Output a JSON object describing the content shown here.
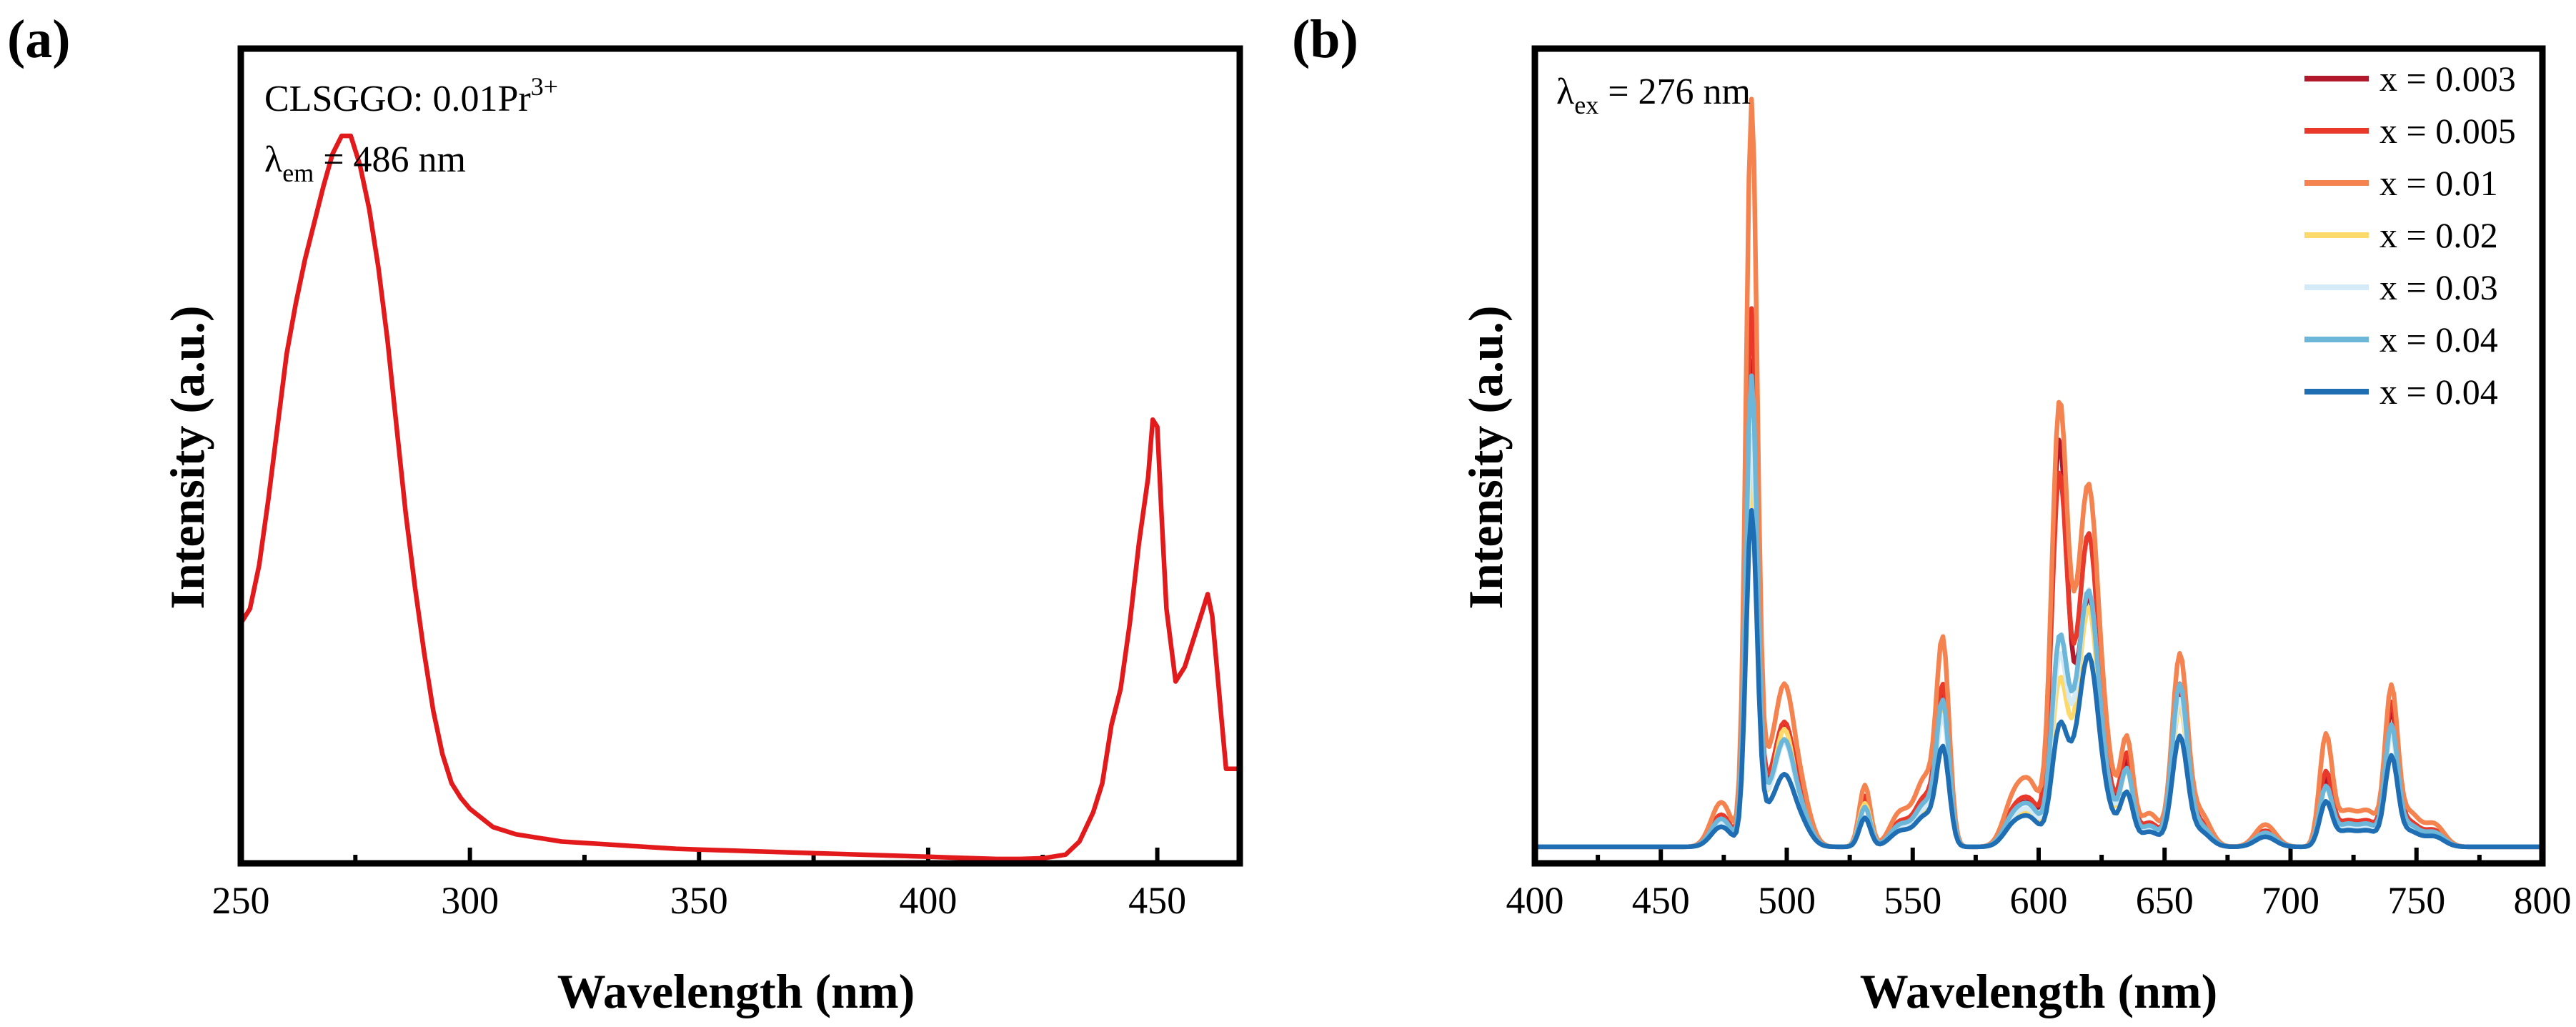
{
  "chart_data": [
    {
      "panel": "(a)",
      "type": "line",
      "title": "",
      "xlabel": "Wavelength (nm)",
      "ylabel": "Intensity (a.u.)",
      "xlim": [
        250,
        468
      ],
      "ylim": [
        0,
        1.12
      ],
      "xticks": [
        250,
        300,
        350,
        400,
        450
      ],
      "annotations": {
        "sample": {
          "prefix": "CLSGGO: 0.01Pr",
          "superscript": "3+"
        },
        "lambda": {
          "symbol": "λ",
          "sub": "em",
          "text": " = 486 nm"
        }
      },
      "series": [
        {
          "name": "CLSGGO: 0.01Pr3+",
          "color": "#e31a1c",
          "x": [
            250,
            252,
            254,
            256,
            258,
            260,
            262,
            264,
            266,
            268,
            270,
            272,
            274,
            276,
            278,
            280,
            282,
            284,
            286,
            288,
            290,
            292,
            294,
            296,
            298,
            300,
            305,
            310,
            315,
            320,
            325,
            330,
            335,
            340,
            345,
            350,
            355,
            360,
            365,
            370,
            375,
            380,
            385,
            390,
            395,
            400,
            405,
            410,
            415,
            420,
            425,
            430,
            433,
            436,
            438,
            440,
            442,
            444,
            446,
            448,
            449,
            450,
            451,
            452,
            453,
            454,
            456,
            458,
            460,
            461,
            462,
            463,
            464,
            465,
            466,
            468
          ],
          "values": [
            0.33,
            0.35,
            0.41,
            0.5,
            0.6,
            0.7,
            0.77,
            0.83,
            0.88,
            0.93,
            0.975,
            1.0,
            1.0,
            0.96,
            0.9,
            0.82,
            0.72,
            0.6,
            0.48,
            0.38,
            0.29,
            0.21,
            0.15,
            0.11,
            0.09,
            0.075,
            0.05,
            0.04,
            0.035,
            0.03,
            0.028,
            0.026,
            0.024,
            0.022,
            0.02,
            0.019,
            0.018,
            0.017,
            0.016,
            0.015,
            0.014,
            0.013,
            0.012,
            0.011,
            0.01,
            0.009,
            0.008,
            0.007,
            0.006,
            0.006,
            0.007,
            0.012,
            0.03,
            0.07,
            0.11,
            0.19,
            0.24,
            0.33,
            0.44,
            0.53,
            0.61,
            0.6,
            0.47,
            0.35,
            0.3,
            0.25,
            0.27,
            0.31,
            0.35,
            0.37,
            0.34,
            0.27,
            0.2,
            0.13,
            0.13,
            0.13
          ]
        }
      ]
    },
    {
      "panel": "(b)",
      "type": "line",
      "title": "",
      "xlabel": "Wavelength (nm)",
      "ylabel": "Intensity (a.u.)",
      "xlim": [
        400,
        800
      ],
      "ylim": [
        0,
        1.0
      ],
      "xticks": [
        400,
        450,
        500,
        550,
        600,
        650,
        700,
        750,
        800
      ],
      "annotations": {
        "lambda": {
          "symbol": "λ",
          "sub": "ex",
          "text": " = 276 nm"
        }
      },
      "legend_position": "top-right",
      "peaks_nm": [
        486,
        499,
        531,
        562,
        608,
        620,
        635,
        656,
        714,
        740
      ],
      "series": [
        {
          "name": "x = 0.003",
          "color": "#b2182b",
          "peaks": [
            0.65,
            0.14,
            0.065,
            0.2,
            0.52,
            0.28,
            0.11,
            0.21,
            0.09,
            0.18
          ]
        },
        {
          "name": "x = 0.005",
          "color": "#e8392b",
          "peaks": [
            0.72,
            0.14,
            0.07,
            0.21,
            0.47,
            0.36,
            0.12,
            0.22,
            0.1,
            0.19
          ]
        },
        {
          "name": "x = 0.01",
          "color": "#f4834f",
          "peaks": [
            1.0,
            0.18,
            0.085,
            0.27,
            0.55,
            0.4,
            0.14,
            0.26,
            0.15,
            0.21
          ]
        },
        {
          "name": "x = 0.02",
          "color": "#fdd86a",
          "peaks": [
            0.5,
            0.14,
            0.06,
            0.18,
            0.2,
            0.28,
            0.1,
            0.19,
            0.08,
            0.15
          ]
        },
        {
          "name": "x = 0.03",
          "color": "#d4eaf6",
          "peaks": [
            0.55,
            0.12,
            0.055,
            0.17,
            0.23,
            0.3,
            0.1,
            0.2,
            0.08,
            0.15
          ]
        },
        {
          "name": "x = 0.04",
          "color": "#6cb7d9",
          "peaks": [
            0.63,
            0.12,
            0.055,
            0.19,
            0.25,
            0.29,
            0.1,
            0.22,
            0.08,
            0.16
          ]
        },
        {
          "name": "x = 0.04",
          "color": "#1f6eb3",
          "peaks": [
            0.45,
            0.08,
            0.04,
            0.13,
            0.14,
            0.22,
            0.07,
            0.15,
            0.06,
            0.12
          ]
        }
      ]
    }
  ]
}
